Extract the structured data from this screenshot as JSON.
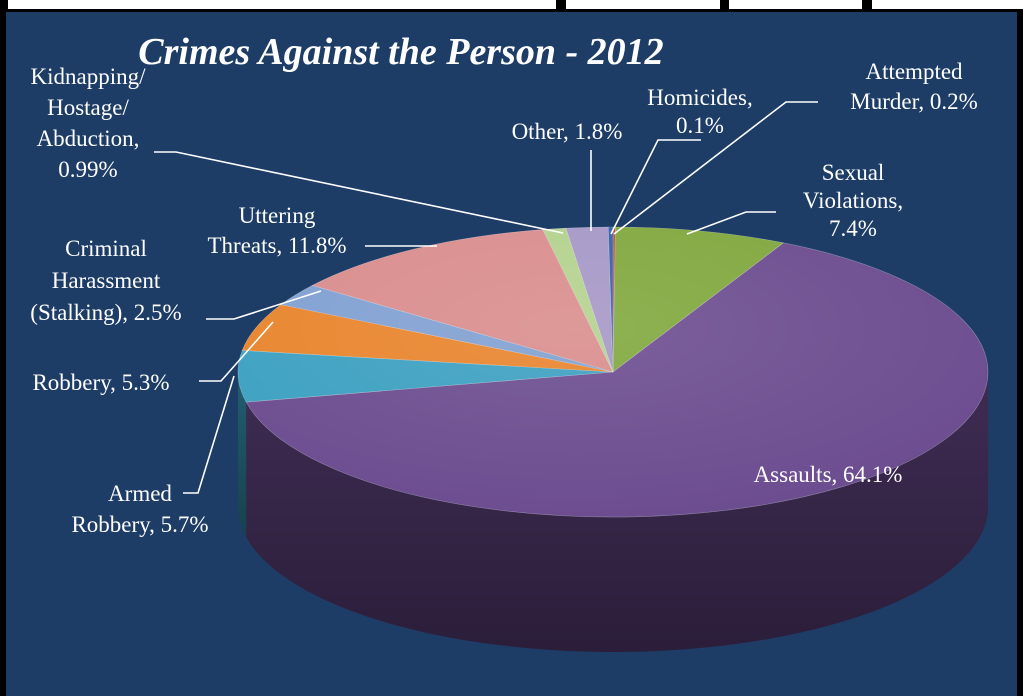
{
  "chart_data": {
    "type": "pie",
    "title": "Crimes Against the Person - 2012",
    "slices": [
      {
        "category": "Homicides",
        "value": 0.1,
        "color": "#c0392b",
        "label_lines": [
          "Homicides,",
          "0.1%"
        ]
      },
      {
        "category": "Sexual Violations",
        "value": 7.4,
        "color": "#7fa63b",
        "label_lines": [
          "Sexual",
          "Violations,",
          "7.4%"
        ]
      },
      {
        "category": "Assaults",
        "value": 64.1,
        "color": "#6a4a8e",
        "label_lines": [
          "Assaults, 64.1%"
        ]
      },
      {
        "category": "Armed Robbery",
        "value": 5.7,
        "color": "#3a9fc0",
        "label_lines": [
          "Armed",
          "Robbery, 5.7%"
        ]
      },
      {
        "category": "Robbery",
        "value": 5.3,
        "color": "#e8832a",
        "label_lines": [
          "Robbery, 5.3%"
        ]
      },
      {
        "category": "Criminal Harassment (Stalking)",
        "value": 2.5,
        "color": "#7f9fd1",
        "label_lines": [
          "Criminal",
          "Harassment",
          "(Stalking), 2.5%"
        ]
      },
      {
        "category": "Uttering Threats",
        "value": 11.8,
        "color": "#d98b8b",
        "label_lines": [
          "Uttering",
          "Threats, 11.8%"
        ]
      },
      {
        "category": "Kidnapping/Hostage/Abduction",
        "value": 0.99,
        "color": "#b3d18c",
        "label_lines": [
          "Kidnapping/",
          "Hostage/",
          "Abduction,",
          "0.99%"
        ]
      },
      {
        "category": "Other",
        "value": 1.8,
        "color": "#a496c6",
        "label_lines": [
          "Other, 1.8%"
        ]
      },
      {
        "category": "Attempted Murder",
        "value": 0.2,
        "color": "#2f5fa8",
        "label_lines": [
          "Attempted",
          "Murder, 0.2%"
        ]
      }
    ]
  }
}
